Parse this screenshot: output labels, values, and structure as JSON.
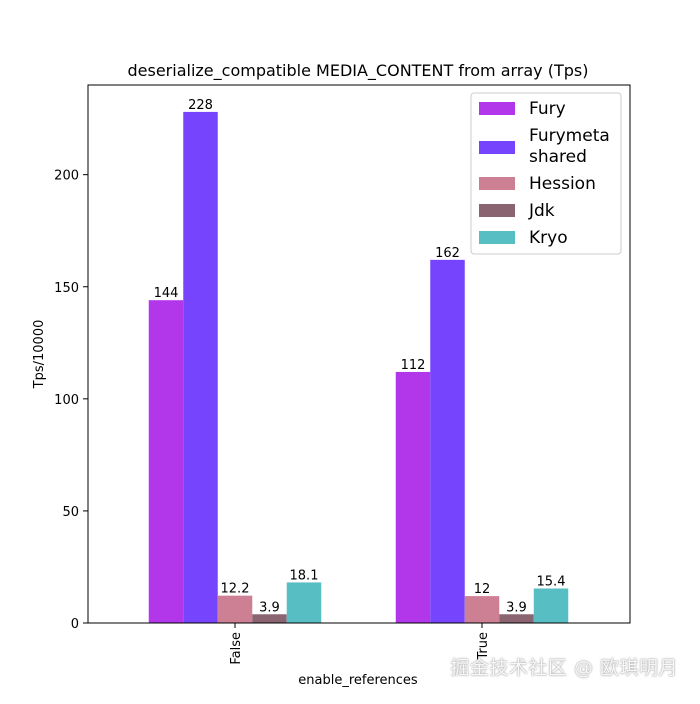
{
  "chart_data": {
    "type": "bar",
    "title": "deserialize_compatible MEDIA_CONTENT from array (Tps)",
    "xlabel": "enable_references",
    "ylabel": "Tps/10000",
    "categories": [
      "False",
      "True"
    ],
    "ylim": [
      0,
      240
    ],
    "yticks": [
      0,
      50,
      100,
      150,
      200
    ],
    "grid": false,
    "legend_position": "top-right",
    "series": [
      {
        "name": "Fury",
        "color": "#b236ea",
        "values": [
          144,
          112
        ],
        "labels": [
          "144",
          "112"
        ]
      },
      {
        "name": "Furymeta shared",
        "name_lines": [
          "Furymeta",
          "shared"
        ],
        "color": "#7744fd",
        "values": [
          228,
          162
        ],
        "labels": [
          "228",
          "162"
        ]
      },
      {
        "name": "Hession",
        "color": "#cd8094",
        "values": [
          12.2,
          12
        ],
        "labels": [
          "12.2",
          "12"
        ]
      },
      {
        "name": "Jdk",
        "color": "#8b6472",
        "values": [
          3.9,
          3.9
        ],
        "labels": [
          "3.9",
          "3.9"
        ]
      },
      {
        "name": "Kryo",
        "color": "#57bfc4",
        "values": [
          18.1,
          15.4
        ],
        "labels": [
          "18.1",
          "15.4"
        ]
      }
    ]
  },
  "watermark": "掘金技术社区 @ 欧琪明月"
}
